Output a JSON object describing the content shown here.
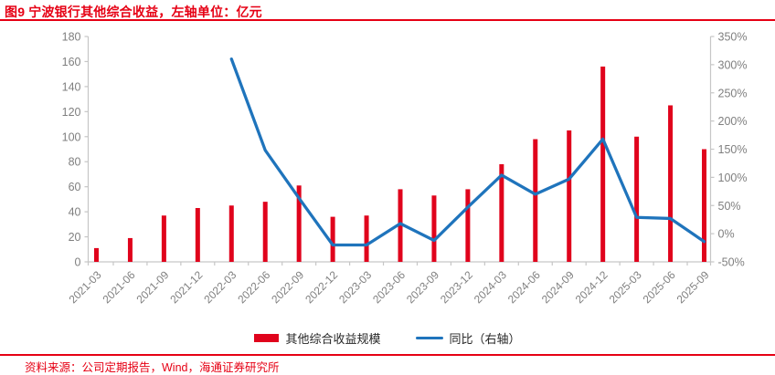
{
  "header": {
    "title": "图9 宁波银行其他综合收益，左轴单位：亿元"
  },
  "legend": [
    {
      "label": "其他综合收益规模",
      "type": "bar",
      "color": "#e0031c"
    },
    {
      "label": "同比（右轴）",
      "type": "line",
      "color": "#1f74bc"
    }
  ],
  "footer": {
    "source": "资料来源：公司定期报告，Wind，海通证券研究所"
  },
  "colors": {
    "accent_red": "#e60014",
    "bar": "#e0031c",
    "line": "#1f74bc",
    "axis": "#c6c6c6",
    "tick_label": "#7f7f7f"
  },
  "chart_data": {
    "type": "bar",
    "title": "宁波银行其他综合收益",
    "left_axis_unit": "亿元",
    "categories": [
      "2021-03",
      "2021-06",
      "2021-09",
      "2021-12",
      "2022-03",
      "2022-06",
      "2022-09",
      "2022-12",
      "2023-03",
      "2023-06",
      "2023-09",
      "2023-12",
      "2024-03",
      "2024-06",
      "2024-09",
      "2024-12",
      "2025-03",
      "2025-06",
      "2025-09"
    ],
    "series": [
      {
        "name": "其他综合收益规模",
        "type": "bar",
        "axis": "left",
        "color": "#e0031c",
        "values": [
          11,
          19,
          37,
          43,
          45,
          48,
          61,
          36,
          37,
          58,
          53,
          58,
          78,
          98,
          105,
          156,
          100,
          125,
          90
        ]
      },
      {
        "name": "同比（右轴）",
        "type": "line",
        "axis": "right",
        "color": "#1f74bc",
        "values": [
          null,
          null,
          null,
          null,
          310,
          148,
          63,
          -20,
          -20,
          18,
          -12,
          47,
          104,
          70,
          97,
          168,
          29,
          27,
          -14
        ]
      }
    ],
    "left_axis": {
      "min": 0,
      "max": 180,
      "step": 20,
      "suffix": ""
    },
    "right_axis": {
      "min": -50,
      "max": 350,
      "step": 50,
      "suffix": "%"
    },
    "grid": false,
    "legend_position": "bottom"
  }
}
